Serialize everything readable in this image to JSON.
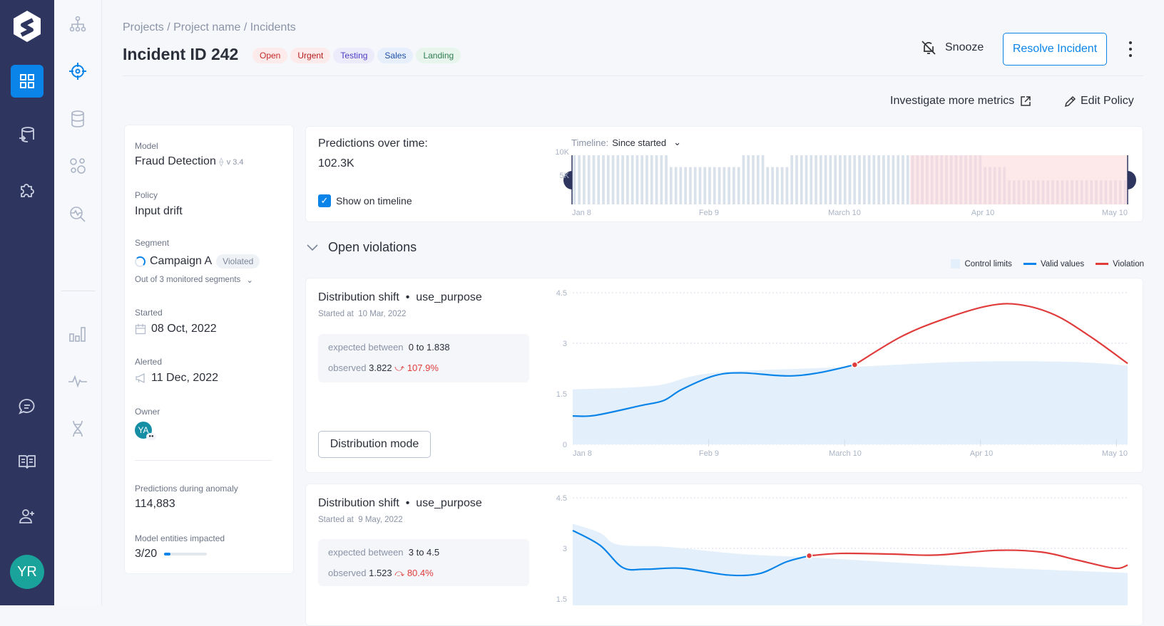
{
  "nav": {
    "items": [
      "grid-icon",
      "database-sync-icon",
      "puzzle-icon",
      "chat-icon",
      "book-icon",
      "add-user-icon"
    ],
    "avatar_initials": "YR",
    "avatar_color": "#1aa39a"
  },
  "subnav": {
    "items": [
      "hierarchy-icon",
      "target-icon",
      "database-icon",
      "models-icon",
      "search-pulse-icon",
      "bar-chart-icon",
      "pulse-icon",
      "dna-icon"
    ]
  },
  "header": {
    "breadcrumb": "Projects / Project name / Incidents",
    "title": "Incident ID 242",
    "tags": [
      {
        "label": "Open",
        "color": "#c62828",
        "bg": "#fdeaea"
      },
      {
        "label": "Urgent",
        "color": "#b71c1c",
        "bg": "#fdeaea"
      },
      {
        "label": "Testing",
        "color": "#4b3cc4",
        "bg": "#ecebfb"
      },
      {
        "label": "Sales",
        "color": "#1e4fa8",
        "bg": "#e6effb"
      },
      {
        "label": "Landing",
        "color": "#2e7d4f",
        "bg": "#e7f5ec"
      }
    ],
    "snooze": "Snooze",
    "resolve": "Resolve Incident",
    "investigate": "Investigate more metrics",
    "edit_policy": "Edit Policy"
  },
  "details": {
    "model_label": "Model",
    "model": "Fraud Detection",
    "model_version": "v 3.4",
    "policy_label": "Policy",
    "policy": "Input drift",
    "segment_label": "Segment",
    "segment": "Campaign A",
    "segment_badge": "Violated",
    "segment_sub": "Out of 3 monitored segments",
    "started_label": "Started",
    "started": "08 Oct, 2022",
    "alerted_label": "Alerted",
    "alerted": "11 Dec, 2022",
    "owner_label": "Owner",
    "owner_initials": "YA",
    "pred_anomaly_label": "Predictions during anomaly",
    "pred_anomaly": "114,883",
    "entities_label": "Model entities impacted",
    "entities": "3/20",
    "entities_fraction": 0.15
  },
  "predictions": {
    "title": "Predictions over time:",
    "total": "102.3K",
    "show_on_timeline": "Show on timeline",
    "show_checked": true,
    "timeline_label": "Timeline:",
    "timeline_value": "Since started"
  },
  "violations": {
    "title": "Open violations",
    "legend": [
      "Control limits",
      "Valid values",
      "Violation"
    ]
  },
  "colors": {
    "accent": "#0a84e8",
    "violation": "#e03c3c",
    "band": "#e3f0fb",
    "nav": "#2e3660"
  },
  "cards": [
    {
      "title": "Distribution shift",
      "feature": "use_purpose",
      "started_label": "Started at",
      "started": "10 Mar, 2022",
      "expected_label": "expected between",
      "expected": "0 to 1.838",
      "observed_label": "observed",
      "observed": "3.822",
      "change": "107.9%",
      "direction": "up",
      "button": "Distribution mode"
    },
    {
      "title": "Distribution shift",
      "feature": "use_purpose",
      "started_label": "Started at",
      "started": "9 May, 2022",
      "expected_label": "expected between",
      "expected": "3 to 4.5",
      "observed_label": "observed",
      "observed": "1.523",
      "change": "80.4%",
      "direction": "down"
    }
  ],
  "chart_data": [
    {
      "type": "bar",
      "title": "Predictions over time:",
      "yticks": [
        "10K",
        "5K"
      ],
      "ylim": [
        0,
        10000
      ],
      "xticks": [
        "Jan 8",
        "Feb 9",
        "March 10",
        "Apr 10",
        "May 10"
      ],
      "segments": [
        {
          "value": 10000,
          "count": 20
        },
        {
          "value": 7600,
          "count": 15
        },
        {
          "value": 10000,
          "count": 5
        },
        {
          "value": 7600,
          "count": 5
        },
        {
          "value": 10000,
          "count": 25
        },
        {
          "value": 10000,
          "count": 15,
          "violation": true
        },
        {
          "value": 7600,
          "count": 5,
          "violation": true
        },
        {
          "value": 4900,
          "count": 25,
          "violation": true
        }
      ],
      "violation_from": "2022-03-25"
    },
    {
      "type": "line",
      "ylim": [
        0,
        4.5
      ],
      "yticks": [
        "0",
        "1.5",
        "3",
        "4.5"
      ],
      "xticks": [
        "Jan 8",
        "Feb 9",
        "March 10",
        "Apr 10",
        "May 10"
      ],
      "xrange": [
        "2022-01-08",
        "2022-05-10"
      ],
      "valid": [
        [
          "2022-01-08",
          0.84
        ],
        [
          "2022-01-13",
          0.86
        ],
        [
          "2022-01-23",
          1.15
        ],
        [
          "2022-01-28",
          1.3
        ],
        [
          "2022-02-01",
          1.63
        ],
        [
          "2022-02-08",
          2.03
        ],
        [
          "2022-02-14",
          2.12
        ],
        [
          "2022-02-24",
          2.03
        ],
        [
          "2022-03-03",
          2.12
        ],
        [
          "2022-03-11",
          2.36
        ]
      ],
      "violation": [
        [
          "2022-03-11",
          2.36
        ],
        [
          "2022-03-21",
          3.18
        ],
        [
          "2022-03-30",
          3.69
        ],
        [
          "2022-04-09",
          4.1
        ],
        [
          "2022-04-16",
          4.15
        ],
        [
          "2022-04-24",
          3.84
        ],
        [
          "2022-05-02",
          3.18
        ],
        [
          "2022-05-10",
          2.4
        ]
      ],
      "control_upper": [
        [
          "2022-01-08",
          1.63
        ],
        [
          "2022-01-26",
          1.74
        ],
        [
          "2022-02-08",
          2.12
        ],
        [
          "2022-03-11",
          2.3
        ],
        [
          "2022-04-04",
          2.45
        ],
        [
          "2022-04-27",
          2.45
        ],
        [
          "2022-05-10",
          2.34
        ]
      ]
    },
    {
      "type": "line",
      "ylim": [
        0,
        4.5
      ],
      "yticks": [
        "1.5",
        "3",
        "4.5"
      ],
      "xrange": [
        "2022-01-08",
        "2022-05-10"
      ],
      "valid": [
        [
          "2022-01-08",
          3.53
        ],
        [
          "2022-01-14",
          3.09
        ],
        [
          "2022-01-19",
          2.43
        ],
        [
          "2022-01-24",
          2.38
        ],
        [
          "2022-02-01",
          2.41
        ],
        [
          "2022-02-11",
          2.21
        ],
        [
          "2022-02-18",
          2.25
        ],
        [
          "2022-02-24",
          2.6
        ],
        [
          "2022-03-01",
          2.78
        ]
      ],
      "violation": [
        [
          "2022-03-01",
          2.78
        ],
        [
          "2022-03-08",
          2.85
        ],
        [
          "2022-03-19",
          2.83
        ],
        [
          "2022-03-29",
          2.8
        ],
        [
          "2022-04-11",
          2.94
        ],
        [
          "2022-04-21",
          2.89
        ],
        [
          "2022-04-29",
          2.65
        ],
        [
          "2022-05-07",
          2.41
        ],
        [
          "2022-05-10",
          2.5
        ]
      ],
      "control_upper": [
        [
          "2022-01-08",
          3.73
        ],
        [
          "2022-01-14",
          3.46
        ],
        [
          "2022-01-18",
          3.11
        ],
        [
          "2022-01-29",
          3.04
        ],
        [
          "2022-02-14",
          2.83
        ],
        [
          "2022-03-03",
          2.72
        ],
        [
          "2022-04-04",
          2.47
        ],
        [
          "2022-05-10",
          2.27
        ]
      ]
    }
  ]
}
